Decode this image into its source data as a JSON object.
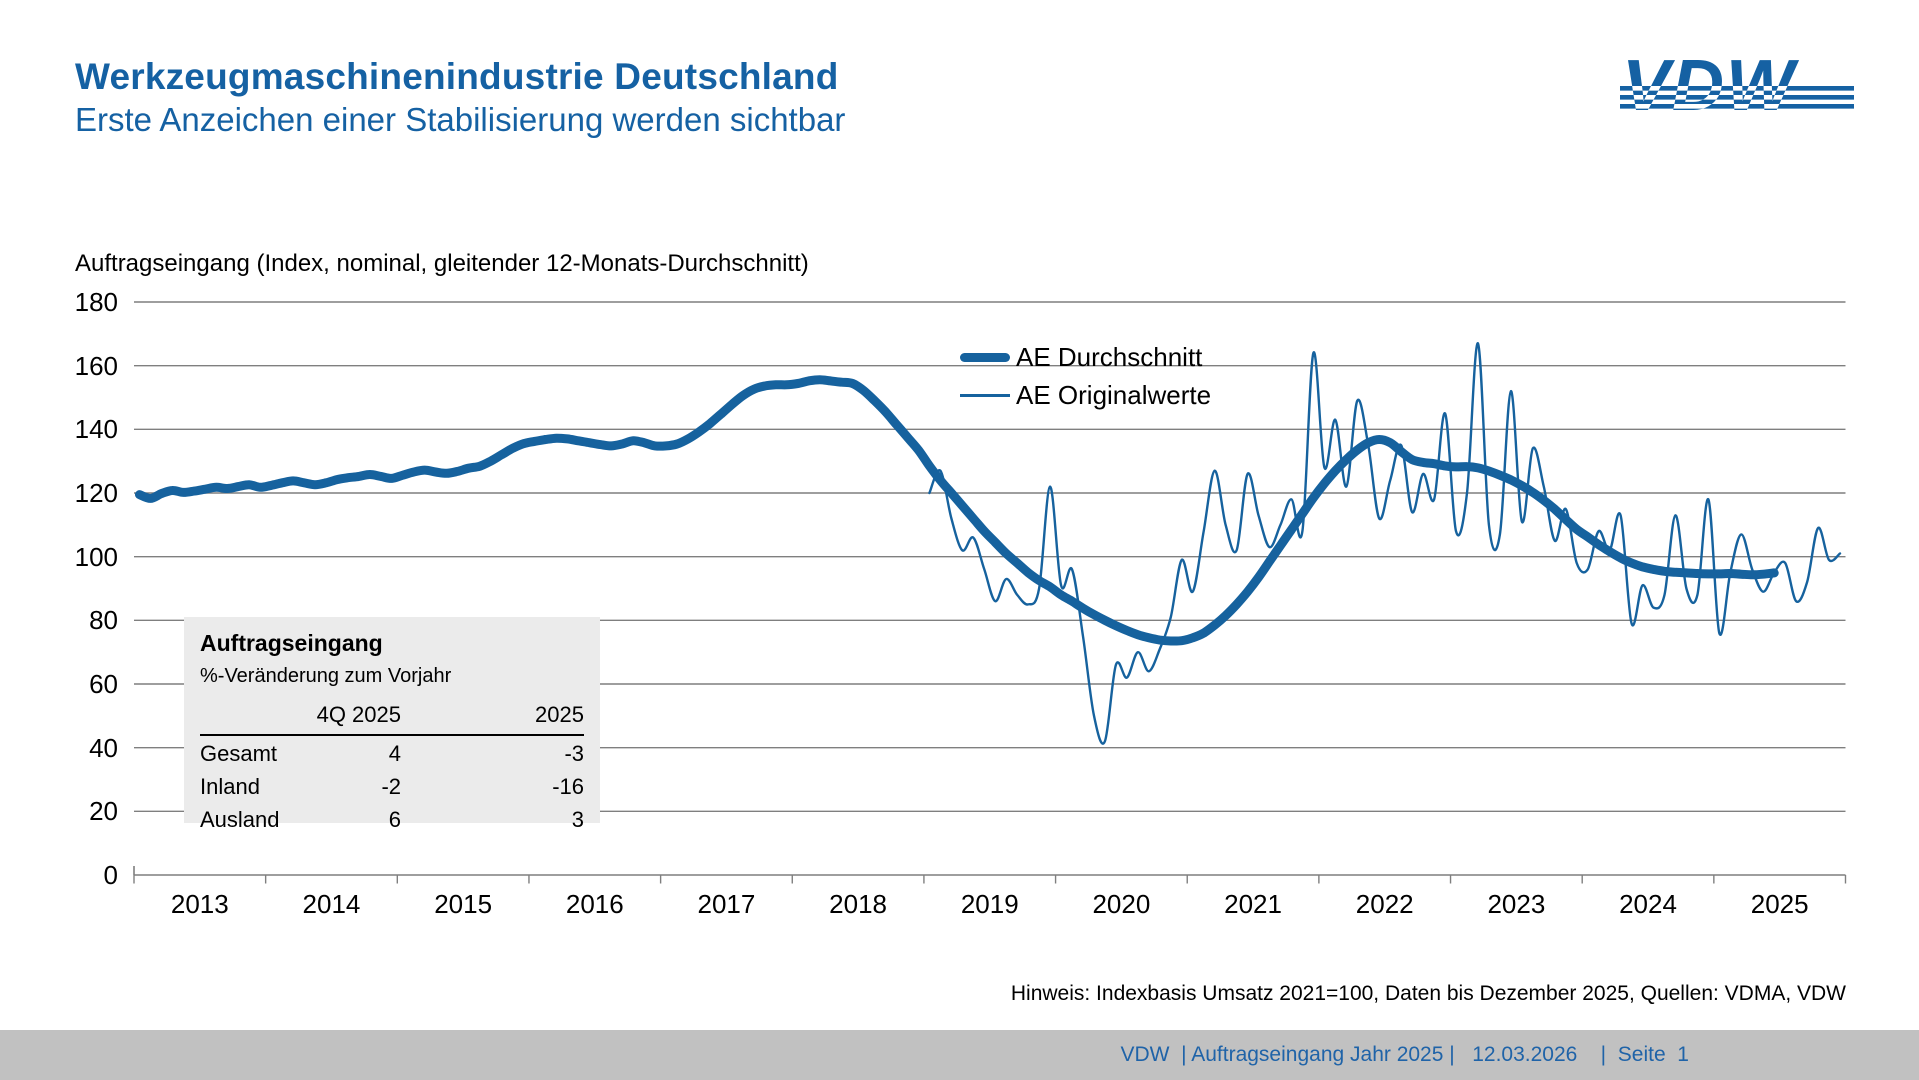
{
  "header": {
    "title": "Werkzeugmaschinenindustrie Deutschland",
    "subtitle": "Erste Anzeichen einer Stabilisierung werden sichtbar",
    "logo_text": "VDW"
  },
  "colors": {
    "accent_blue": "#16629E",
    "title_blue": "#1561A3",
    "grid_gray": "#7F7F7F",
    "table_bg": "#EBEBEB",
    "footer_bar_bg": "#C1C1C1",
    "footer_text_blue": "#1F63A8"
  },
  "chart_data": {
    "type": "line",
    "title": "Auftragseingang (Index, nominal, gleitender 12-Monats-Durchschnitt)",
    "ylim": [
      0,
      180
    ],
    "yticks": [
      0,
      20,
      40,
      60,
      80,
      100,
      120,
      140,
      160,
      180
    ],
    "years": [
      2013,
      2014,
      2015,
      2016,
      2017,
      2018,
      2019,
      2020,
      2021,
      2022,
      2023,
      2024,
      2025
    ],
    "grid": "horizontal",
    "legend_position": "top-center",
    "series": [
      {
        "name": "AE Durchschnitt",
        "style": "thick",
        "start": "2013-01",
        "values": [
          119.5,
          118.3,
          119.8,
          120.8,
          120.2,
          120.6,
          121.2,
          121.8,
          121.4,
          122.0,
          122.6,
          121.8,
          122.4,
          123.2,
          123.8,
          123.2,
          122.6,
          123.2,
          124.2,
          124.8,
          125.2,
          125.8,
          125.2,
          124.6,
          125.6,
          126.6,
          127.2,
          126.6,
          126.2,
          126.8,
          127.8,
          128.4,
          130.0,
          132.0,
          134.0,
          135.5,
          136.2,
          136.8,
          137.2,
          137.0,
          136.4,
          135.8,
          135.2,
          134.8,
          135.4,
          136.4,
          135.8,
          134.8,
          134.8,
          135.4,
          137.0,
          139.2,
          141.8,
          144.8,
          147.8,
          150.6,
          152.6,
          153.6,
          154.0,
          154.0,
          154.4,
          155.2,
          155.6,
          155.2,
          154.8,
          154.4,
          152.2,
          149.0,
          145.5,
          141.5,
          137.5,
          133.5,
          128.5,
          124.0,
          120.0,
          116.0,
          112.0,
          108.0,
          104.5,
          101.0,
          98.0,
          95.0,
          92.5,
          90.5,
          88.0,
          86.0,
          83.8,
          81.8,
          80.0,
          78.3,
          76.8,
          75.5,
          74.5,
          73.8,
          73.5,
          73.6,
          74.5,
          76.0,
          78.5,
          81.5,
          85.0,
          89.0,
          93.5,
          98.5,
          103.5,
          108.5,
          113.5,
          118.5,
          123.0,
          127.0,
          130.5,
          133.5,
          135.8,
          136.8,
          135.8,
          133.0,
          130.5,
          129.6,
          129.2,
          128.5,
          128.2,
          128.3,
          127.9,
          126.9,
          125.6,
          124.1,
          122.3,
          120.2,
          117.7,
          114.9,
          111.7,
          108.6,
          106.2,
          103.8,
          101.6,
          99.6,
          98.0,
          96.8,
          96.0,
          95.4,
          95.1,
          94.9,
          94.7,
          94.6,
          94.6,
          94.7,
          94.5,
          94.3,
          94.5,
          94.9
        ]
      },
      {
        "name": "AE Originalwerte",
        "style": "thin",
        "start": "2019-01",
        "values": [
          120,
          127,
          112,
          102,
          106,
          96,
          86,
          93,
          88,
          85,
          90,
          122,
          91,
          96,
          75,
          50,
          42,
          66,
          62,
          70,
          64,
          71,
          81,
          99,
          89,
          108,
          127,
          110,
          102,
          126,
          113,
          103,
          110,
          118,
          108,
          164,
          128,
          143,
          122,
          149,
          135,
          112,
          124,
          135,
          114,
          126,
          118,
          145,
          108,
          120,
          167,
          110,
          107,
          152,
          111,
          134,
          122,
          105,
          115,
          98,
          96,
          108,
          102,
          113,
          79,
          91,
          84,
          88,
          113,
          90,
          88,
          118,
          76,
          95,
          107,
          96,
          89,
          95,
          98,
          86,
          92,
          109,
          99,
          101
        ]
      }
    ]
  },
  "inset_table": {
    "title": "Auftragseingang",
    "subtitle": "%-Veränderung zum Vorjahr",
    "col_headers": [
      "4Q 2025",
      "2025"
    ],
    "rows": [
      {
        "label": "Gesamt",
        "q4": "4",
        "year": "-3"
      },
      {
        "label": "Inland",
        "q4": "-2",
        "year": "-16"
      },
      {
        "label": "Ausland",
        "q4": "6",
        "year": "3"
      }
    ]
  },
  "footnote": "Hinweis: Indexbasis Umsatz 2021=100, Daten bis Dezember 2025, Quellen: VDMA, VDW",
  "footer": {
    "text": "VDW  | Auftragseingang Jahr 2025 |   12.03.2026    |  Seite  1"
  }
}
